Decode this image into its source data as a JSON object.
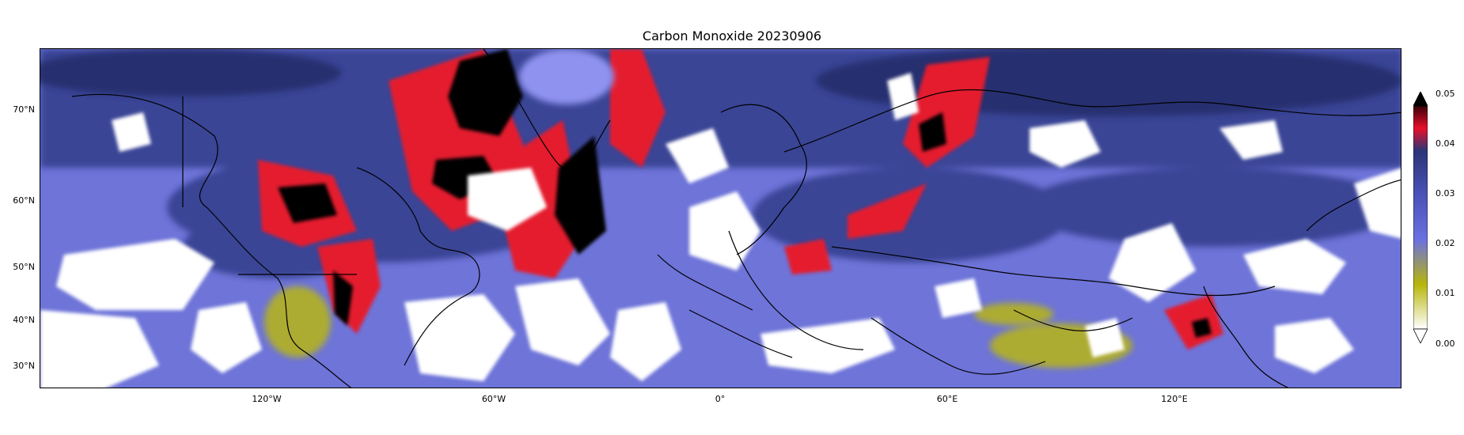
{
  "title": "Carbon Monoxide 20230906",
  "map": {
    "projection": "equirectangular",
    "lon_range": [
      -180,
      180
    ],
    "lat_range": [
      26,
      81
    ],
    "lat_ticks": [
      "70°N",
      "60°N",
      "50°N",
      "40°N",
      "30°N"
    ],
    "lon_ticks": [
      "120°W",
      "60°W",
      "0°",
      "60°E",
      "120°E"
    ],
    "background_field_color": "#6e74d8",
    "no_data_color": "#ffffff"
  },
  "colorbar": {
    "labels": [
      "0.05",
      "0.04",
      "0.03",
      "0.02",
      "0.01",
      "0.00"
    ],
    "min": 0.0,
    "max": 0.05,
    "extend": "both",
    "colors": {
      "top_extend": "#000000",
      "high": "#e8102a",
      "upper": "#2c3577",
      "mid": "#6b70e0",
      "low": "#b7b60a",
      "bottom": "#ffffff"
    }
  }
}
